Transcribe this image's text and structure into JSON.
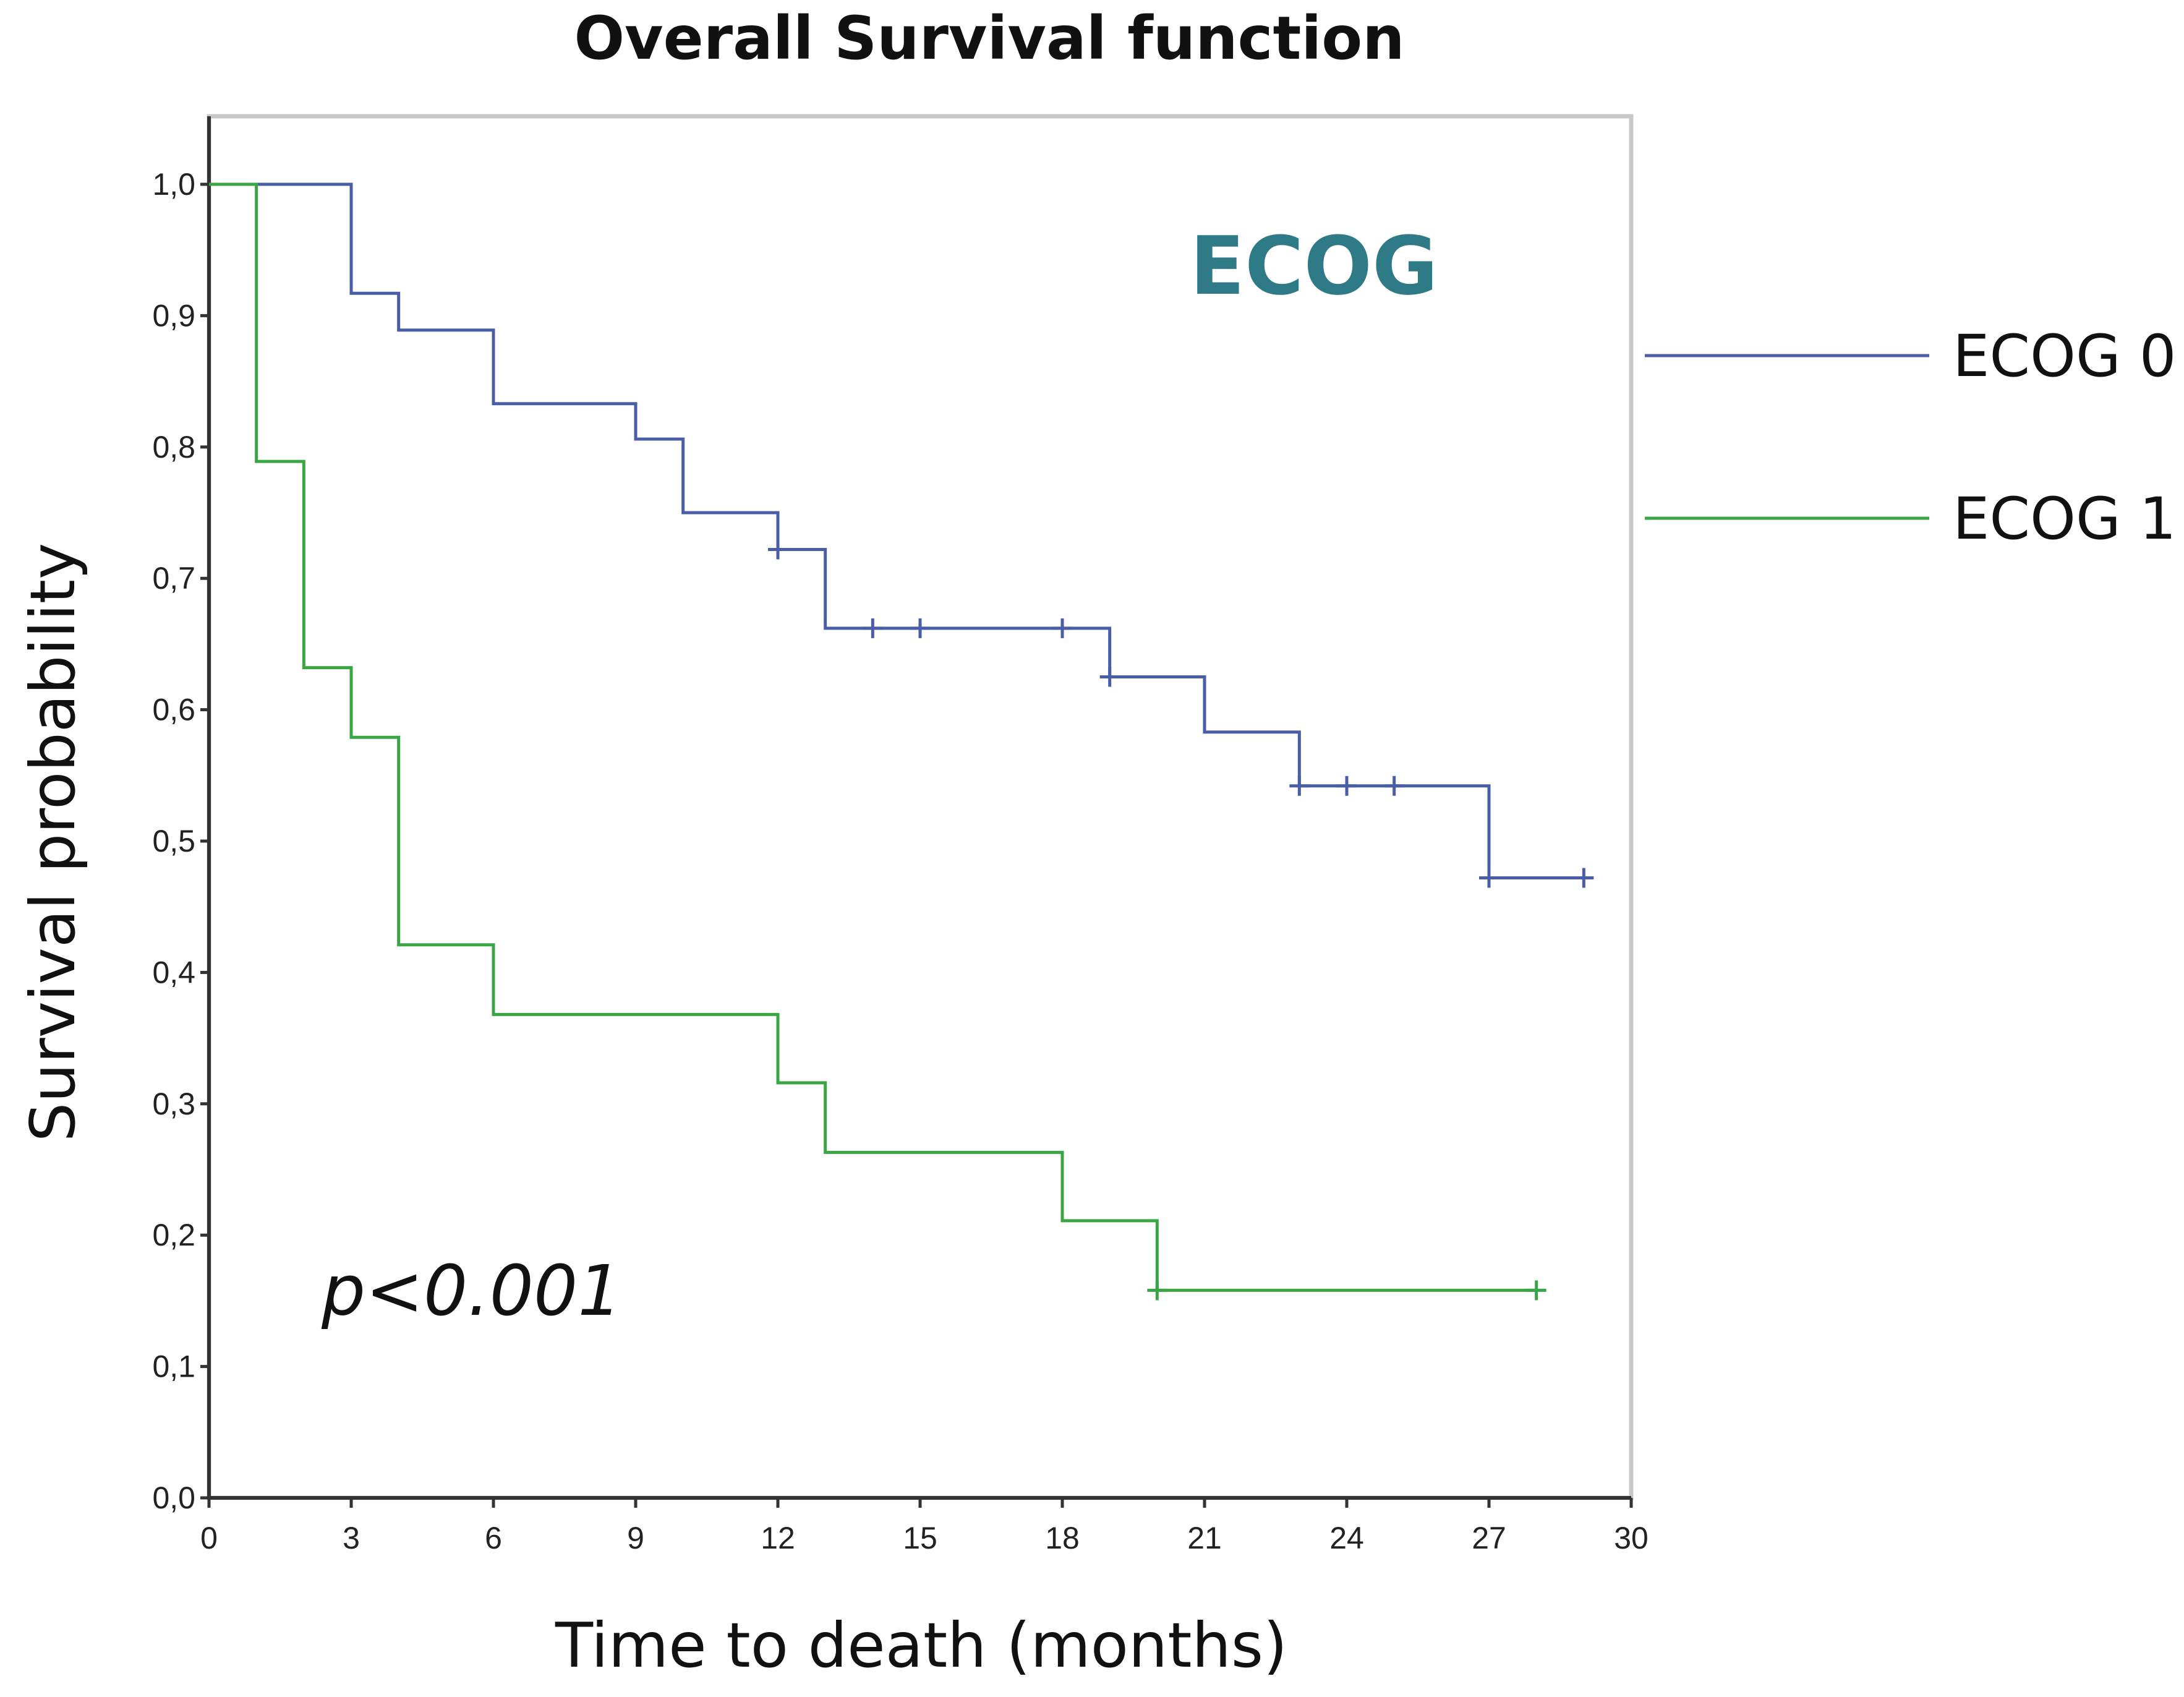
{
  "chart_data": {
    "type": "line",
    "title": "Overall Survival function",
    "xlabel": "Time to death (months)",
    "ylabel": "Survival probability",
    "xlim": [
      0,
      30
    ],
    "ylim": [
      0,
      1
    ],
    "x_ticks": [
      "0",
      "3",
      "6",
      "9",
      "12",
      "15",
      "18",
      "21",
      "24",
      "27",
      "30"
    ],
    "x_tick_values": [
      0,
      3,
      6,
      9,
      12,
      15,
      18,
      21,
      24,
      27,
      30
    ],
    "y_ticks": [
      "0,0",
      "0,1",
      "0,2",
      "0,3",
      "0,4",
      "0,5",
      "0,6",
      "0,7",
      "0,8",
      "0,9",
      "1,0"
    ],
    "y_tick_values": [
      0,
      0.1,
      0.2,
      0.3,
      0.4,
      0.5,
      0.6,
      0.7,
      0.8,
      0.9,
      1.0
    ],
    "grid": false,
    "legend_position": "right",
    "annotations": {
      "group_label": "ECOG",
      "p_value": "p<0.001"
    },
    "series": [
      {
        "name": "ECOG 0",
        "color": "#4a5ea8",
        "step_x": [
          0,
          3,
          4,
          6,
          9,
          10,
          12,
          13,
          19,
          21,
          23,
          27,
          29
        ],
        "step_y": [
          1.0,
          0.917,
          0.889,
          0.833,
          0.806,
          0.75,
          0.722,
          0.662,
          0.625,
          0.583,
          0.542,
          0.472,
          0.472
        ],
        "censored_x": [
          12,
          14,
          15,
          18,
          19,
          23,
          24,
          25,
          27,
          29
        ],
        "censored_y": [
          0.722,
          0.662,
          0.662,
          0.662,
          0.625,
          0.542,
          0.542,
          0.542,
          0.472,
          0.472
        ]
      },
      {
        "name": "ECOG 1",
        "color": "#3aa545",
        "step_x": [
          0,
          1,
          2,
          3,
          4,
          6,
          12,
          13,
          18,
          20,
          28
        ],
        "step_y": [
          1.0,
          0.789,
          0.632,
          0.579,
          0.421,
          0.368,
          0.316,
          0.263,
          0.211,
          0.158,
          0.158
        ],
        "censored_x": [
          20,
          28
        ],
        "censored_y": [
          0.158,
          0.158
        ]
      }
    ]
  },
  "colors": {
    "ecog_label": "#2e7b87",
    "frame": "#c8c8c8",
    "axis": "#333333"
  }
}
